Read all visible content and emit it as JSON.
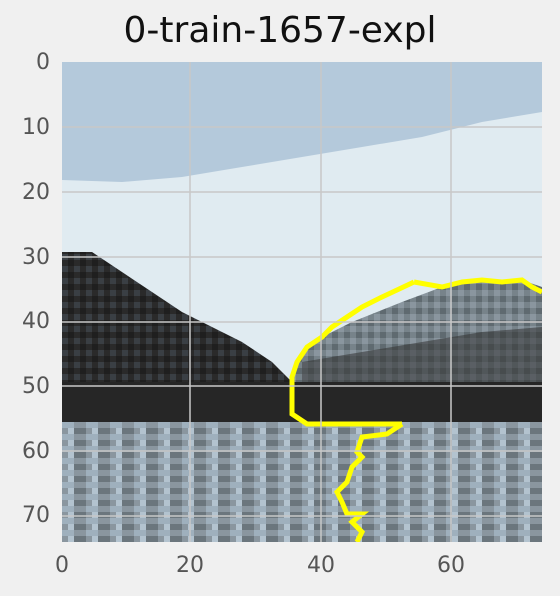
{
  "title": "0-train-1657-expl",
  "axes": {
    "x_ticks": [
      "0",
      "20",
      "40",
      "60"
    ],
    "y_ticks": [
      "0",
      "10",
      "20",
      "30",
      "40",
      "50",
      "60",
      "70"
    ]
  },
  "colors": {
    "background": "#f0f0f0",
    "sky_dark": "#b4c9db",
    "sky_light": "#e0ebf1",
    "mountain": "#2f2f2f",
    "mountain_light": "#7a868e",
    "band": "#262626",
    "ground": "#8a969f",
    "outline": "#ffff00",
    "grid": "#c8c8c8"
  }
}
